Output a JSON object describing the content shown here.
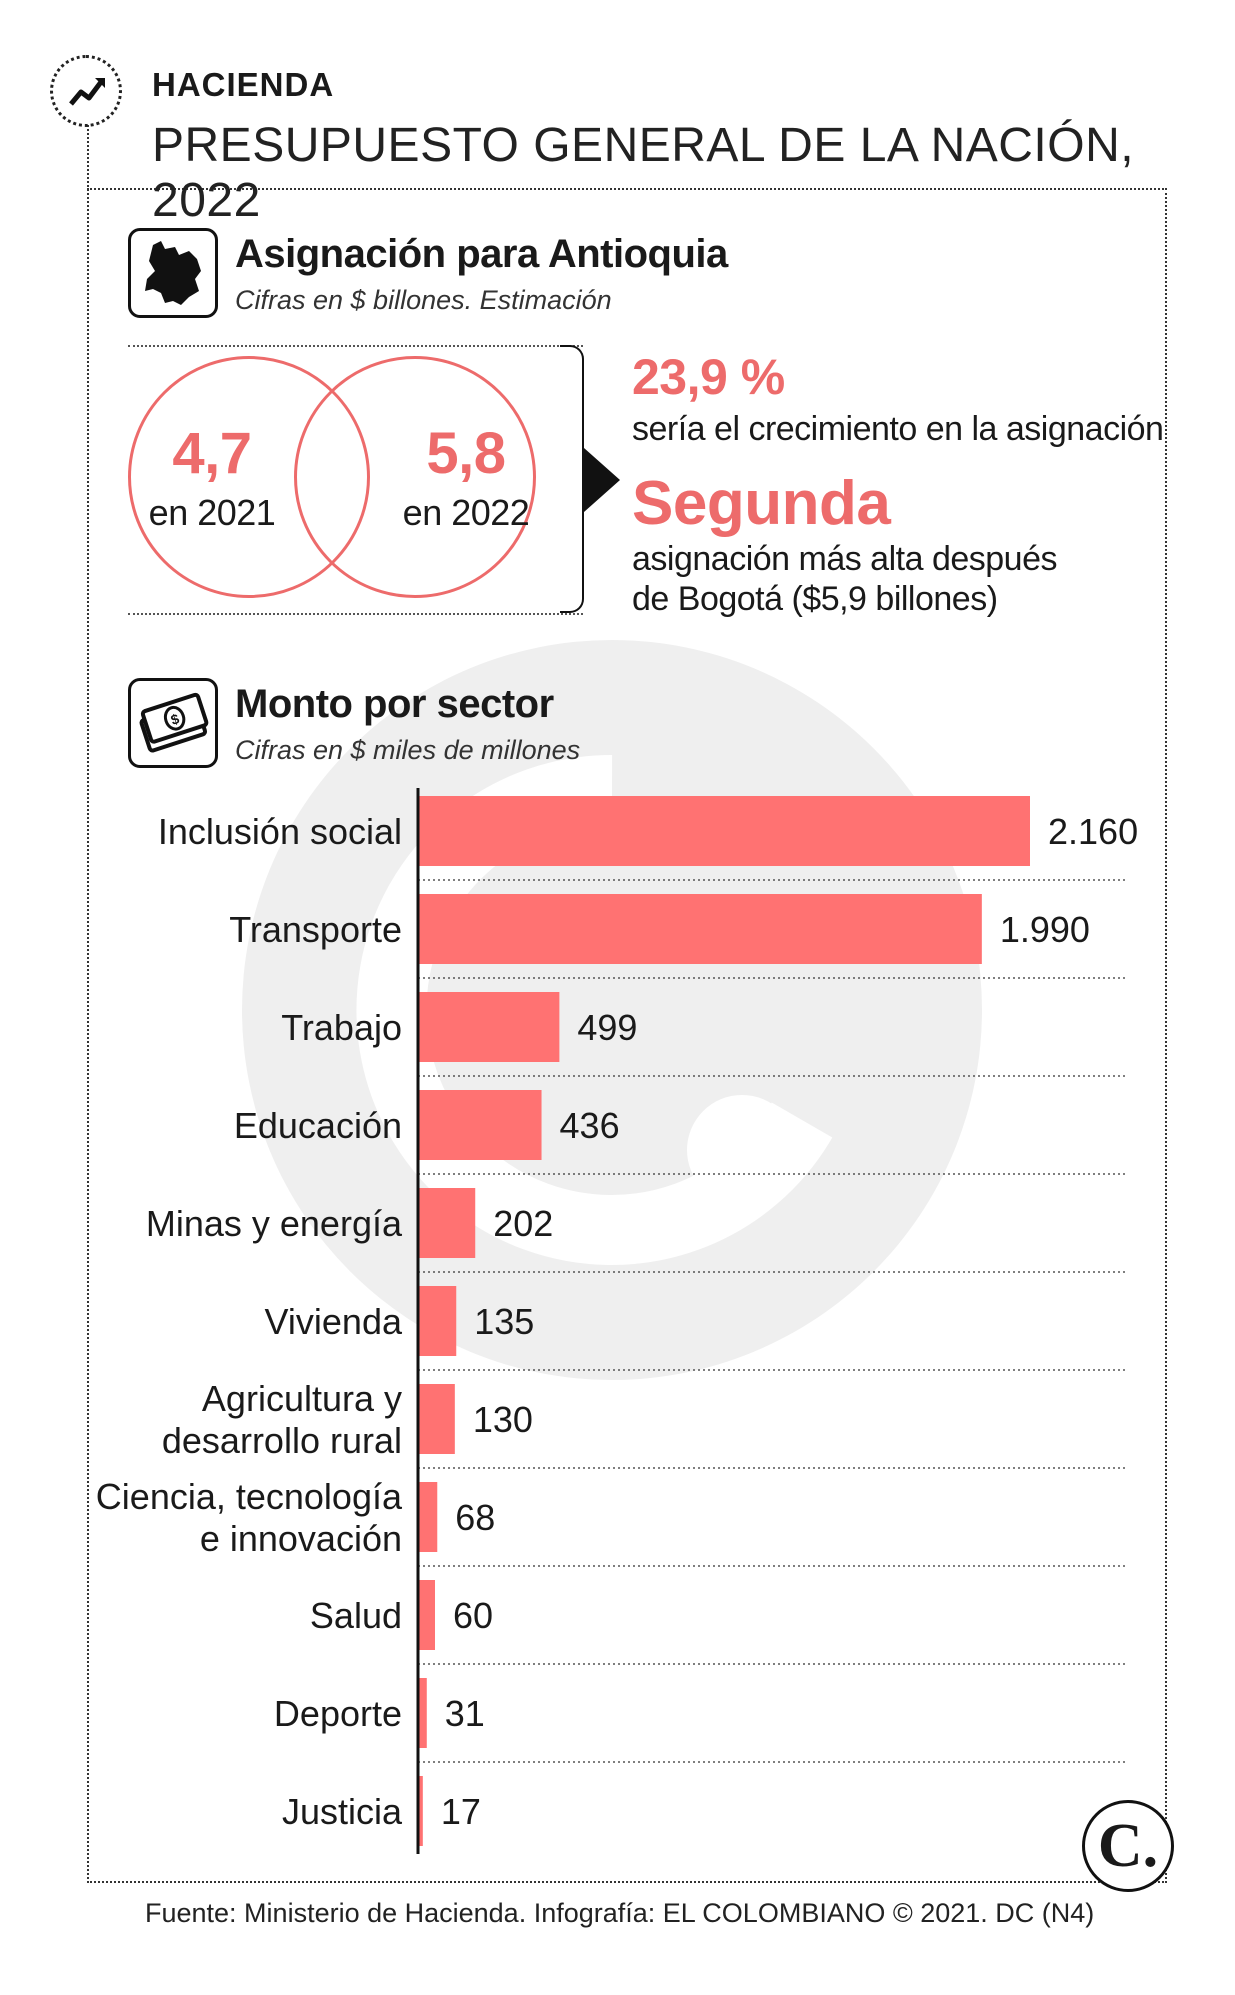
{
  "header": {
    "section": "HACIENDA",
    "title": "PRESUPUESTO GENERAL DE LA NACIÓN, 2022",
    "icon": "trend-up-arrow-icon"
  },
  "antioquia": {
    "title": "Asignación para Antioquia",
    "subtitle": "Cifras en $ billones. Estimación",
    "icon": "antioquia-map-icon",
    "value_2021": "4,7",
    "label_2021": "en 2021",
    "value_2022": "5,8",
    "label_2022": "en 2022",
    "growth_value": "23,9 %",
    "growth_text": "sería el crecimiento en la asignación",
    "rank_value": "Segunda",
    "rank_text_1": "asignación más alta después",
    "rank_text_2": "de Bogotá ($5,9 billones)"
  },
  "sector": {
    "title": "Monto por sector",
    "subtitle": "Cifras en $ miles de millones",
    "icon": "money-bills-icon"
  },
  "chart_data": {
    "type": "bar",
    "orientation": "horizontal",
    "categories": [
      [
        "Inclusión social"
      ],
      [
        "Transporte"
      ],
      [
        "Trabajo"
      ],
      [
        "Educación"
      ],
      [
        "Minas y energía"
      ],
      [
        "Vivienda"
      ],
      [
        "Agricultura y",
        "desarrollo rural"
      ],
      [
        "Ciencia, tecnología",
        "e innovación"
      ],
      [
        "Salud"
      ],
      [
        "Deporte"
      ],
      [
        "Justicia"
      ]
    ],
    "values": [
      2160,
      1990,
      499,
      436,
      202,
      135,
      130,
      68,
      60,
      31,
      17
    ],
    "value_labels": [
      "2.160",
      "1.990",
      "499",
      "436",
      "202",
      "135",
      "130",
      "68",
      "60",
      "31",
      "17"
    ],
    "xlim": [
      0,
      2160
    ],
    "grid": "dotted row separators",
    "bar_color": "#ff7272"
  },
  "footer": {
    "source": "Fuente: Ministerio de Hacienda. Infografía: EL COLOMBIANO © 2021. DC (N4)",
    "logo": "C."
  },
  "colors": {
    "accent": "#ed6b6b",
    "bar": "#ff7272",
    "text": "#1a1a1a"
  }
}
